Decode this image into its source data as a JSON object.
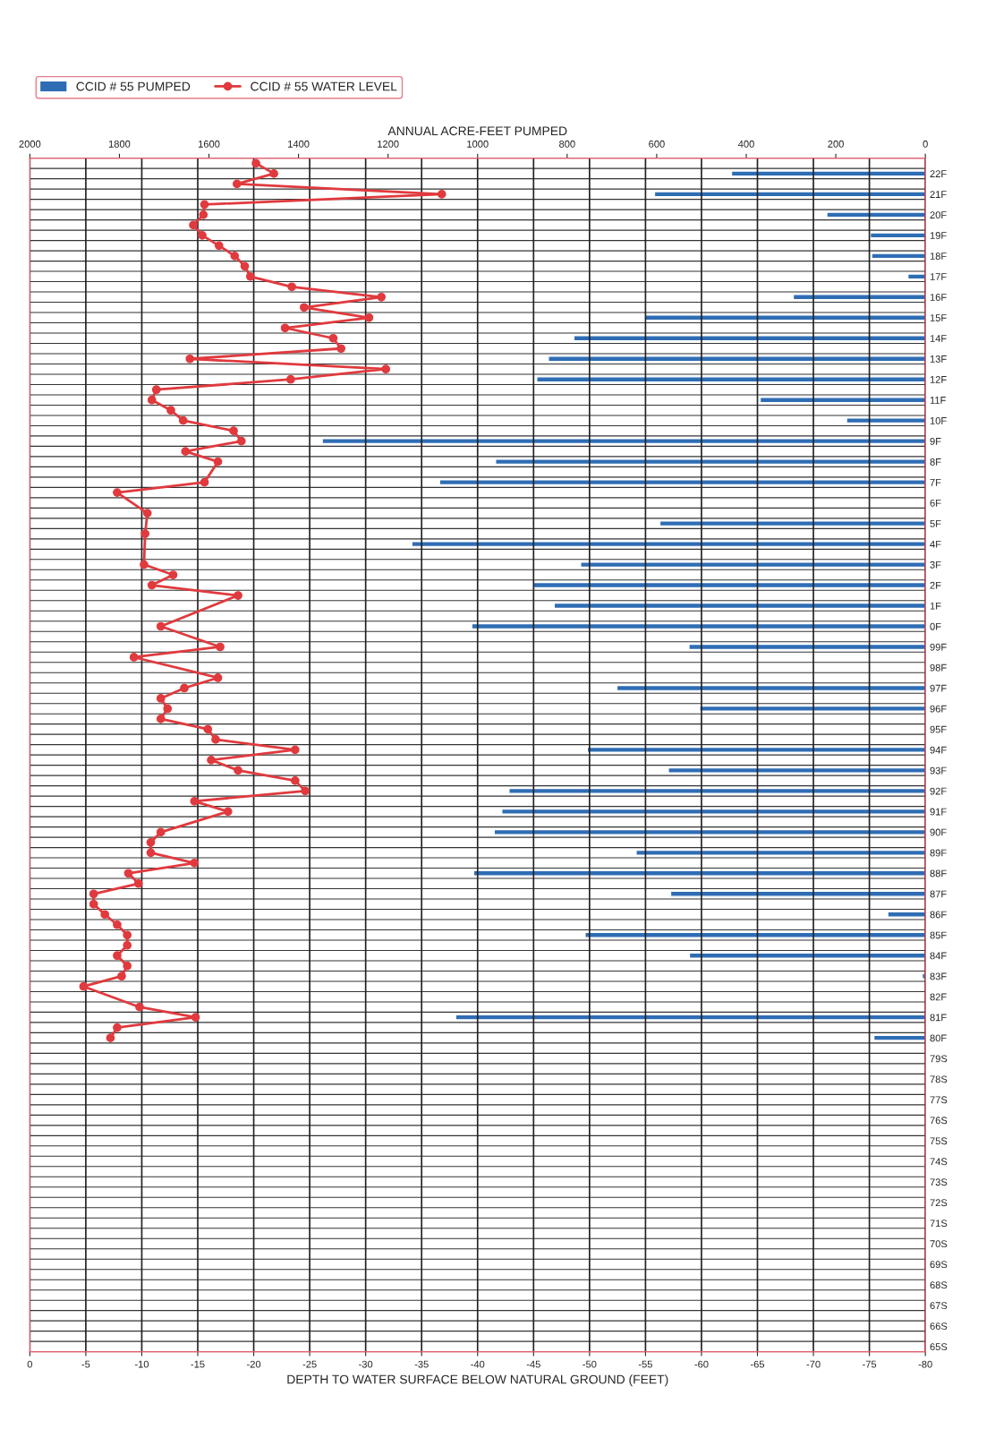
{
  "chart_data": {
    "type": "bar",
    "orientation": "horizontal",
    "xlabel": "DEPTH TO WATER SURFACE BELOW NATURAL GROUND (FEET)",
    "x2label": "ANNUAL ACRE-FEET PUMPED",
    "categories": [
      null,
      "22F",
      null,
      "21F",
      null,
      "20F",
      null,
      "19F",
      null,
      "18F",
      null,
      "17F",
      null,
      "16F",
      null,
      "15F",
      null,
      "14F",
      null,
      "13F",
      null,
      "12F",
      null,
      "11F",
      null,
      "10F",
      null,
      "9F",
      null,
      "8F",
      null,
      "7F",
      null,
      "6F",
      null,
      "5F",
      null,
      "4F",
      null,
      "3F",
      null,
      "2F",
      null,
      "1F",
      null,
      "0F",
      null,
      "99F",
      null,
      "98F",
      null,
      "97F",
      null,
      "96F",
      null,
      "95F",
      null,
      "94F",
      null,
      "93F",
      null,
      "92F",
      null,
      "91F",
      null,
      "90F",
      null,
      "89F",
      null,
      "88F",
      null,
      "87F",
      null,
      "86F",
      null,
      "85F",
      null,
      "84F",
      null,
      "83F",
      null,
      "82F",
      null,
      "81F",
      null,
      "80F",
      null,
      "79S",
      null,
      "78S",
      null,
      "77S",
      null,
      "76S",
      null,
      "75S",
      null,
      "74S",
      null,
      "73S",
      null,
      "72S",
      null,
      "71S",
      null,
      "70S",
      null,
      "69S",
      null,
      "68S",
      null,
      "67S",
      null,
      "66S",
      null,
      "65S"
    ],
    "xlim": [
      0,
      -80
    ],
    "xticks": [
      0,
      -5,
      -10,
      -15,
      -20,
      -25,
      -30,
      -35,
      -40,
      -45,
      -50,
      -55,
      -60,
      -65,
      -70,
      -75,
      -80
    ],
    "x2lim": [
      2000,
      0
    ],
    "x2ticks": [
      0,
      200,
      400,
      600,
      800,
      1000,
      1200,
      1400,
      1600,
      1800,
      2000
    ],
    "grid": true,
    "legend": "top left",
    "series": [
      {
        "name": "CCID # 55 PUMPED",
        "axis": "x2",
        "color": "#2e6db4",
        "values": [
          null,
          433,
          null,
          605,
          null,
          220,
          null,
          123,
          null,
          120,
          null,
          39,
          null,
          295,
          null,
          627,
          null,
          785,
          null,
          842,
          null,
          868,
          null,
          369,
          null,
          176,
          null,
          1347,
          null,
          960,
          null,
          1085,
          null,
          null,
          null,
          593,
          null,
          1147,
          null,
          770,
          null,
          875,
          null,
          829,
          null,
          1013,
          null,
          528,
          null,
          null,
          null,
          689,
          null,
          504,
          null,
          null,
          null,
          755,
          null,
          574,
          null,
          930,
          null,
          946,
          null,
          963,
          null,
          646,
          null,
          1009,
          null,
          569,
          null,
          84,
          null,
          760,
          null,
          527,
          null,
          7,
          null,
          null,
          null,
          1049,
          null,
          115,
          null,
          null,
          null,
          null,
          null,
          null,
          null,
          null,
          null,
          null,
          null,
          null,
          null,
          null,
          null,
          null,
          null,
          null,
          null,
          null,
          null,
          null,
          null,
          null,
          null,
          null,
          null,
          null,
          null,
          null
        ]
      },
      {
        "name": "CCID # 55 WATER LEVEL",
        "type": "line",
        "color": "#e03a3e",
        "marker": "circle",
        "values": [
          -20.2,
          -21.8,
          -18.5,
          -36.8,
          -15.6,
          -15.5,
          -14.6,
          -15.4,
          -16.9,
          -18.3,
          -19.2,
          -19.7,
          -23.4,
          -31.4,
          -24.5,
          -30.3,
          -22.8,
          -27.1,
          -27.8,
          -14.3,
          -31.8,
          -23.3,
          -11.3,
          -10.9,
          -12.6,
          -13.7,
          -18.2,
          -18.9,
          -13.9,
          -16.8,
          null,
          -15.6,
          -7.8,
          null,
          -10.5,
          null,
          -10.3,
          null,
          null,
          -10.2,
          -12.8,
          -10.9,
          -18.6,
          null,
          null,
          -11.7,
          null,
          -17.0,
          -9.3,
          null,
          -16.8,
          -13.8,
          -11.7,
          -12.3,
          -11.7,
          -15.9,
          -16.6,
          -23.7,
          -16.2,
          -18.6,
          -23.7,
          -24.6,
          -14.7,
          -17.7,
          null,
          -11.7,
          -10.8,
          -10.8,
          -14.7,
          -8.8,
          -9.7,
          -5.7,
          -5.7,
          -6.7,
          -7.8,
          -8.7,
          -8.7,
          -7.8,
          -8.7,
          -8.2,
          -4.8,
          null,
          -9.8,
          -14.8,
          -7.8,
          -7.2,
          null,
          null,
          null,
          null,
          null,
          null,
          null,
          null,
          null,
          null,
          null,
          null,
          null,
          null,
          null,
          null,
          null,
          null,
          null,
          null,
          null,
          null,
          null,
          null,
          null,
          null,
          null,
          null,
          null,
          null
        ]
      }
    ]
  }
}
